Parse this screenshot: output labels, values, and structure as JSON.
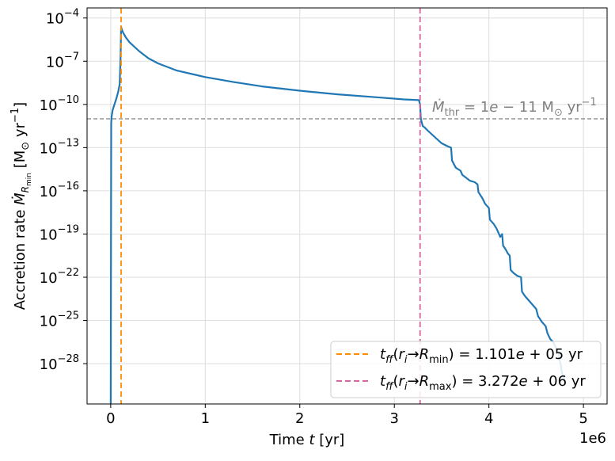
{
  "chart_data": {
    "type": "line",
    "xlabel": "Time t [yr]",
    "ylabel": "Accretion rate Ṁ_{R_min} [M⊙ yr⁻¹]",
    "x_offset_text": "1e6",
    "xlim": [
      -250000,
      5250000
    ],
    "ylim_log10": [
      -30.8,
      -3.3
    ],
    "yscale": "log",
    "grid": true,
    "x_ticks": [
      {
        "value": 0,
        "label": "0"
      },
      {
        "value": 1000000,
        "label": "1"
      },
      {
        "value": 2000000,
        "label": "2"
      },
      {
        "value": 3000000,
        "label": "3"
      },
      {
        "value": 4000000,
        "label": "4"
      },
      {
        "value": 5000000,
        "label": "5"
      }
    ],
    "y_ticks": [
      {
        "exp": -4,
        "base": "10",
        "sup": "−4"
      },
      {
        "exp": -7,
        "base": "10",
        "sup": "−7"
      },
      {
        "exp": -10,
        "base": "10",
        "sup": "−10"
      },
      {
        "exp": -13,
        "base": "10",
        "sup": "−13"
      },
      {
        "exp": -16,
        "base": "10",
        "sup": "−16"
      },
      {
        "exp": -19,
        "base": "10",
        "sup": "−19"
      },
      {
        "exp": -22,
        "base": "10",
        "sup": "−22"
      },
      {
        "exp": -25,
        "base": "10",
        "sup": "−25"
      },
      {
        "exp": -28,
        "base": "10",
        "sup": "−28"
      }
    ],
    "series": [
      {
        "color": "#1f77b4",
        "x": [
          0,
          5000,
          10000,
          20000,
          40000,
          60000,
          80000,
          95000,
          105000,
          110100,
          115000,
          130000,
          160000,
          200000,
          300000,
          400000,
          500000,
          700000,
          1000000,
          1300000,
          1600000,
          2000000,
          2400000,
          2800000,
          3100000,
          3260000,
          3272000,
          3280000,
          3300000,
          3320000,
          3350000,
          3400000,
          3450000,
          3500000,
          3560000,
          3600000,
          3610000,
          3650000,
          3700000,
          3720000,
          3760000,
          3800000,
          3850000,
          3880000,
          3890000,
          3930000,
          3960000,
          4000000,
          4010000,
          4050000,
          4080000,
          4100000,
          4120000,
          4140000,
          4150000,
          4180000,
          4200000,
          4220000,
          4230000,
          4260000,
          4300000,
          4340000,
          4350000,
          4380000,
          4420000,
          4460000,
          4500000,
          4520000,
          4560000,
          4600000,
          4620000,
          4650000,
          4680000,
          4700000,
          4720000,
          4740000,
          4750000,
          4760000,
          4770000,
          4790000,
          4800000,
          4810000
        ],
        "log10_y": [
          -30.8,
          -11.3,
          -10.8,
          -10.4,
          -10.0,
          -9.6,
          -9.1,
          -8.6,
          -6.6,
          -4.6,
          -4.75,
          -5.0,
          -5.35,
          -5.7,
          -6.3,
          -6.8,
          -7.15,
          -7.65,
          -8.1,
          -8.45,
          -8.75,
          -9.05,
          -9.3,
          -9.5,
          -9.65,
          -9.7,
          -10.0,
          -11.0,
          -11.5,
          -11.6,
          -11.8,
          -12.1,
          -12.4,
          -12.7,
          -12.9,
          -13.0,
          -13.9,
          -14.4,
          -14.6,
          -14.9,
          -15.1,
          -15.3,
          -15.4,
          -15.55,
          -16.1,
          -16.5,
          -16.9,
          -17.2,
          -18.0,
          -18.3,
          -18.6,
          -18.9,
          -19.2,
          -19.0,
          -19.8,
          -20.1,
          -20.35,
          -20.5,
          -21.5,
          -21.7,
          -21.9,
          -22.0,
          -23.0,
          -23.3,
          -23.6,
          -23.9,
          -24.2,
          -24.7,
          -25.1,
          -25.4,
          -25.9,
          -26.3,
          -26.5,
          -26.8,
          -27.0,
          -27.3,
          -27.8,
          -28.1,
          -28.6,
          -28.9,
          -29.2,
          -29.5
        ]
      }
    ],
    "vlines": [
      {
        "x": 110100,
        "color": "#ff8c00",
        "style": "dashed"
      },
      {
        "x": 3272000,
        "color": "#d4679e",
        "style": "dashed"
      }
    ],
    "hline": {
      "log10_y": -11,
      "color": "#808080",
      "style": "dashed",
      "label": "Ṁ_thr = 1e − 11 M⊙ yr⁻¹"
    },
    "legend": {
      "placement": "lower-right",
      "entries": [
        {
          "color": "#ff8c00",
          "label": "t_ff(r_i→R_min) = 1.101e + 05 yr"
        },
        {
          "color": "#d4679e",
          "label": "t_ff(r_i→R_max) = 3.272e + 06 yr"
        }
      ]
    }
  }
}
